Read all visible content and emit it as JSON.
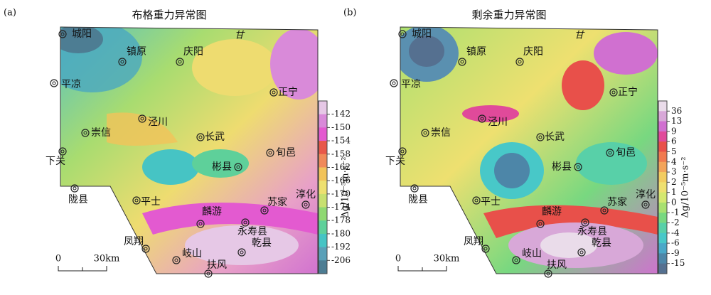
{
  "panels": [
    {
      "label": "(a)",
      "title": "布格重力异常图",
      "places": [
        "城阳",
        "镇原",
        "庆阳",
        "平凉",
        "正宁",
        "泾川",
        "崇信",
        "长武",
        "下关",
        "旬邑",
        "彬县",
        "陇县",
        "平士",
        "苏家",
        "淳化",
        "麟游",
        "永寿县",
        "凤翔",
        "岐山",
        "乾县",
        "扶风"
      ],
      "province": "甘",
      "scale": [
        "0",
        "30km"
      ],
      "colorbar": {
        "label": "Δg/10⁻⁵m·s⁻²",
        "ticks": [
          -142,
          -150,
          -154,
          -158,
          -162,
          -166,
          -170,
          -174,
          -178,
          -180,
          -192,
          -206
        ],
        "colors": [
          "#e6c8e6",
          "#d98ad9",
          "#e35ad0",
          "#e8584a",
          "#f08a5a",
          "#f2c35a",
          "#eee070",
          "#c8e070",
          "#8fd872",
          "#5ed09a",
          "#46c4c4",
          "#5aa0b8",
          "#4d7d93"
        ]
      }
    },
    {
      "label": "(b)",
      "title": "剩余重力异常图",
      "places": [
        "城阳",
        "镇原",
        "庆阳",
        "平凉",
        "正宁",
        "泾川",
        "崇信",
        "长武",
        "下关",
        "旬邑",
        "彬县",
        "陇县",
        "平士",
        "苏家",
        "淳化",
        "麟游",
        "永寿县",
        "凤翔",
        "岐山",
        "乾县",
        "扶风"
      ],
      "province": "甘",
      "scale": [
        "0",
        "30km"
      ],
      "colorbar": {
        "label": "Δg/10⁻⁵m·s⁻²",
        "ticks": [
          36,
          13,
          9,
          6,
          5,
          4,
          3,
          2,
          1,
          0,
          -1,
          -2,
          -4,
          -6,
          -9,
          -15
        ],
        "colors": [
          "#eadcea",
          "#d8a8d8",
          "#d070d0",
          "#e04a9a",
          "#e8504a",
          "#f07a50",
          "#f2a45a",
          "#f2cc60",
          "#eee070",
          "#d4e870",
          "#a8e070",
          "#78d880",
          "#58d0a8",
          "#48c8c8",
          "#4aa8c8",
          "#4d86a8",
          "#557090"
        ]
      }
    }
  ]
}
